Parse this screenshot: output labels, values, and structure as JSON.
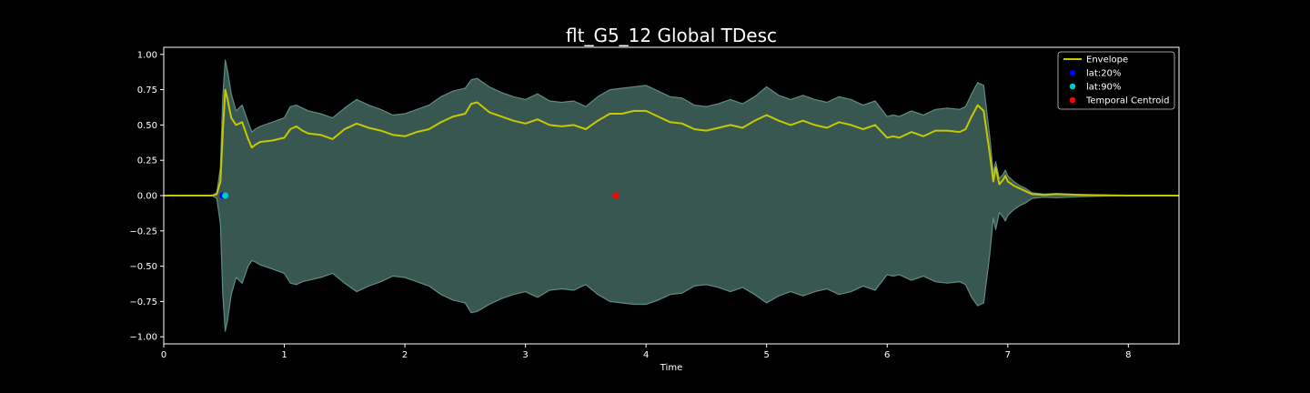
{
  "chart_data": {
    "type": "area",
    "title": "flt_G5_12 Global TDesc",
    "xlabel": "Time",
    "ylabel": "",
    "xlim": [
      0,
      8.42
    ],
    "ylim": [
      -1.05,
      1.05
    ],
    "xticks": [
      0,
      1,
      2,
      3,
      4,
      5,
      6,
      7,
      8
    ],
    "yticks": [
      1.0,
      0.75,
      0.5,
      0.25,
      0.0,
      -0.25,
      -0.5,
      -0.75,
      -1.0
    ],
    "xtick_labels": [
      "0",
      "1",
      "2",
      "3",
      "4",
      "5",
      "6",
      "7",
      "8"
    ],
    "ytick_labels": [
      "1.00",
      "0.75",
      "0.50",
      "0.25",
      "0.00",
      "−0.25",
      "−0.50",
      "−0.75",
      "−1.00"
    ],
    "grid": false,
    "legend_position": "top-right",
    "legend": [
      "Envelope",
      "lat:20%",
      "lat:90%",
      "Temporal Centroid"
    ],
    "colors": {
      "background": "#000000",
      "waveform_fill": "#385750",
      "waveform_edge": "#5f8c82",
      "envelope": "#c8c800",
      "lat20": "#0000ff",
      "lat90": "#00c8c8",
      "centroid": "#ff0000",
      "axis": "#ffffff"
    },
    "series": [
      {
        "name": "Envelope",
        "kind": "line",
        "x": [
          0,
          0.4,
          0.44,
          0.47,
          0.49,
          0.51,
          0.53,
          0.56,
          0.6,
          0.65,
          0.7,
          0.73,
          0.76,
          0.8,
          0.9,
          1.0,
          1.05,
          1.1,
          1.15,
          1.2,
          1.3,
          1.4,
          1.5,
          1.6,
          1.7,
          1.8,
          1.9,
          2.0,
          2.1,
          2.2,
          2.3,
          2.4,
          2.5,
          2.55,
          2.6,
          2.7,
          2.8,
          2.9,
          3.0,
          3.1,
          3.2,
          3.3,
          3.4,
          3.5,
          3.6,
          3.7,
          3.8,
          3.9,
          4.0,
          4.1,
          4.2,
          4.3,
          4.4,
          4.5,
          4.6,
          4.7,
          4.8,
          4.9,
          5.0,
          5.1,
          5.2,
          5.3,
          5.4,
          5.5,
          5.6,
          5.7,
          5.8,
          5.9,
          6.0,
          6.05,
          6.1,
          6.2,
          6.3,
          6.4,
          6.5,
          6.6,
          6.65,
          6.7,
          6.75,
          6.8,
          6.85,
          6.88,
          6.9,
          6.93,
          6.96,
          6.98,
          7.0,
          7.05,
          7.1,
          7.15,
          7.2,
          7.3,
          7.4,
          7.6,
          8.0,
          8.42
        ],
        "y": [
          0.0,
          0.0,
          0.01,
          0.1,
          0.45,
          0.75,
          0.68,
          0.55,
          0.5,
          0.52,
          0.4,
          0.34,
          0.36,
          0.38,
          0.39,
          0.41,
          0.47,
          0.49,
          0.46,
          0.44,
          0.43,
          0.4,
          0.47,
          0.51,
          0.48,
          0.46,
          0.43,
          0.42,
          0.45,
          0.47,
          0.52,
          0.56,
          0.58,
          0.65,
          0.66,
          0.59,
          0.56,
          0.53,
          0.51,
          0.54,
          0.5,
          0.49,
          0.5,
          0.47,
          0.53,
          0.58,
          0.58,
          0.6,
          0.6,
          0.56,
          0.52,
          0.51,
          0.47,
          0.46,
          0.48,
          0.5,
          0.48,
          0.53,
          0.57,
          0.53,
          0.5,
          0.53,
          0.5,
          0.48,
          0.52,
          0.5,
          0.47,
          0.5,
          0.41,
          0.42,
          0.41,
          0.45,
          0.42,
          0.46,
          0.46,
          0.45,
          0.47,
          0.56,
          0.64,
          0.6,
          0.3,
          0.1,
          0.2,
          0.08,
          0.11,
          0.14,
          0.1,
          0.07,
          0.05,
          0.03,
          0.01,
          0.005,
          0.01,
          0.005,
          0.0,
          0.0
        ]
      },
      {
        "name": "waveform",
        "kind": "band",
        "x": [
          0,
          0.4,
          0.44,
          0.47,
          0.49,
          0.51,
          0.53,
          0.56,
          0.6,
          0.65,
          0.7,
          0.73,
          0.76,
          0.8,
          0.9,
          1.0,
          1.05,
          1.1,
          1.15,
          1.2,
          1.3,
          1.4,
          1.5,
          1.6,
          1.7,
          1.8,
          1.9,
          2.0,
          2.1,
          2.2,
          2.3,
          2.4,
          2.5,
          2.55,
          2.6,
          2.7,
          2.8,
          2.9,
          3.0,
          3.1,
          3.2,
          3.3,
          3.4,
          3.5,
          3.6,
          3.7,
          3.8,
          3.9,
          4.0,
          4.1,
          4.2,
          4.3,
          4.4,
          4.5,
          4.6,
          4.7,
          4.8,
          4.9,
          5.0,
          5.1,
          5.2,
          5.3,
          5.4,
          5.5,
          5.6,
          5.7,
          5.8,
          5.9,
          6.0,
          6.05,
          6.1,
          6.2,
          6.3,
          6.4,
          6.5,
          6.6,
          6.65,
          6.7,
          6.75,
          6.8,
          6.85,
          6.88,
          6.9,
          6.93,
          6.96,
          6.98,
          7.0,
          7.05,
          7.1,
          7.15,
          7.2,
          7.3,
          7.4,
          7.6,
          8.0,
          8.42
        ],
        "upper": [
          0.0,
          0.0,
          0.02,
          0.2,
          0.7,
          0.96,
          0.88,
          0.72,
          0.6,
          0.64,
          0.52,
          0.45,
          0.47,
          0.49,
          0.52,
          0.55,
          0.63,
          0.64,
          0.62,
          0.6,
          0.58,
          0.55,
          0.62,
          0.68,
          0.64,
          0.61,
          0.57,
          0.58,
          0.61,
          0.64,
          0.7,
          0.74,
          0.76,
          0.82,
          0.83,
          0.77,
          0.73,
          0.7,
          0.68,
          0.72,
          0.67,
          0.66,
          0.67,
          0.63,
          0.7,
          0.75,
          0.76,
          0.77,
          0.78,
          0.74,
          0.7,
          0.69,
          0.64,
          0.63,
          0.65,
          0.68,
          0.65,
          0.7,
          0.77,
          0.71,
          0.68,
          0.71,
          0.68,
          0.66,
          0.7,
          0.68,
          0.64,
          0.67,
          0.56,
          0.57,
          0.56,
          0.6,
          0.57,
          0.61,
          0.62,
          0.61,
          0.63,
          0.72,
          0.8,
          0.78,
          0.42,
          0.16,
          0.24,
          0.12,
          0.15,
          0.18,
          0.14,
          0.1,
          0.07,
          0.05,
          0.02,
          0.01,
          0.015,
          0.008,
          0.0,
          0.0
        ],
        "lower": [
          0.0,
          0.0,
          -0.02,
          -0.2,
          -0.7,
          -0.96,
          -0.88,
          -0.7,
          -0.58,
          -0.62,
          -0.5,
          -0.46,
          -0.47,
          -0.49,
          -0.52,
          -0.55,
          -0.62,
          -0.63,
          -0.61,
          -0.6,
          -0.58,
          -0.55,
          -0.62,
          -0.68,
          -0.64,
          -0.61,
          -0.57,
          -0.58,
          -0.61,
          -0.64,
          -0.7,
          -0.74,
          -0.76,
          -0.83,
          -0.82,
          -0.77,
          -0.73,
          -0.7,
          -0.68,
          -0.72,
          -0.67,
          -0.66,
          -0.67,
          -0.63,
          -0.7,
          -0.75,
          -0.76,
          -0.77,
          -0.77,
          -0.74,
          -0.7,
          -0.69,
          -0.64,
          -0.63,
          -0.65,
          -0.68,
          -0.65,
          -0.7,
          -0.76,
          -0.71,
          -0.68,
          -0.71,
          -0.68,
          -0.66,
          -0.7,
          -0.68,
          -0.64,
          -0.67,
          -0.56,
          -0.57,
          -0.56,
          -0.6,
          -0.57,
          -0.61,
          -0.62,
          -0.61,
          -0.63,
          -0.72,
          -0.78,
          -0.76,
          -0.42,
          -0.16,
          -0.24,
          -0.12,
          -0.15,
          -0.18,
          -0.14,
          -0.1,
          -0.07,
          -0.05,
          -0.02,
          -0.01,
          -0.015,
          -0.008,
          0.0,
          0.0
        ]
      },
      {
        "name": "lat:20%",
        "kind": "point",
        "x": 0.49,
        "y": 0.0
      },
      {
        "name": "lat:90%",
        "kind": "point",
        "x": 0.51,
        "y": 0.0
      },
      {
        "name": "Temporal Centroid",
        "kind": "point",
        "x": 3.75,
        "y": 0.0
      }
    ]
  }
}
